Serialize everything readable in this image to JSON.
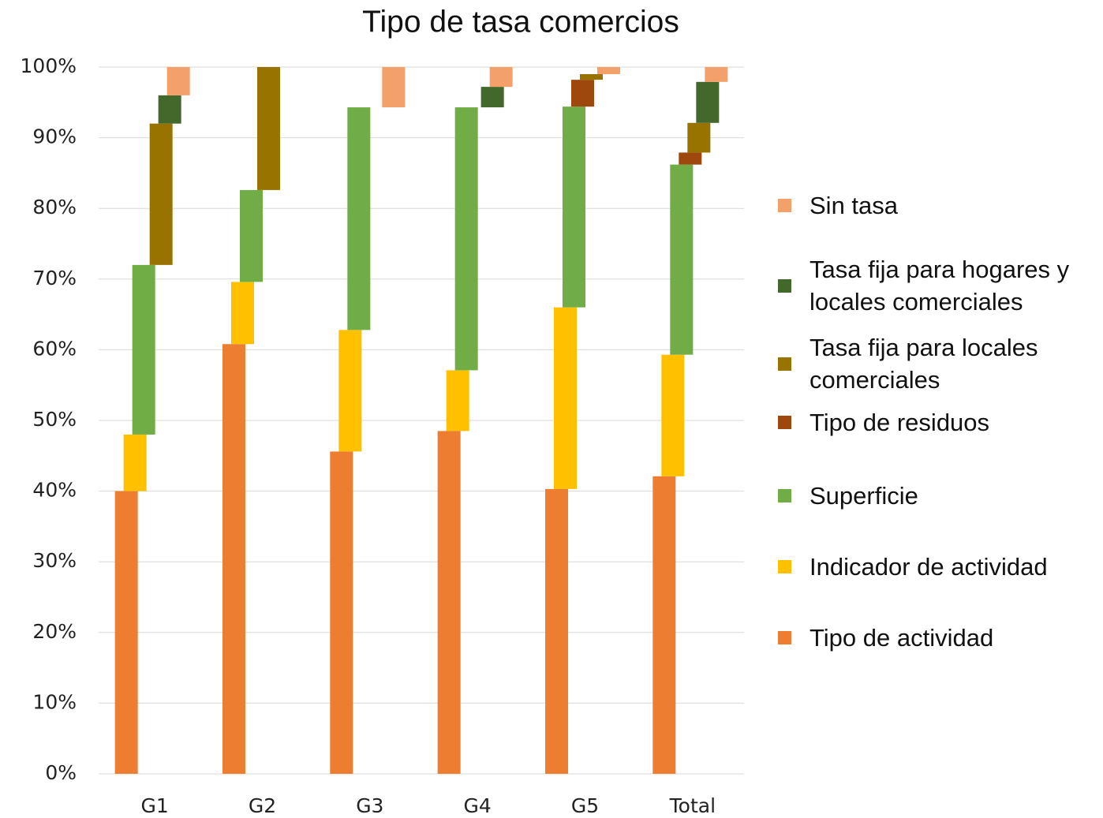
{
  "chart_data": {
    "type": "staggered-stacked-bar",
    "title": "Tipo de tasa comercios",
    "categories": [
      "G1",
      "G2",
      "G3",
      "G4",
      "G5",
      "Total"
    ],
    "series": [
      {
        "name": "Tipo de actividad",
        "color": "#ed7d31",
        "values": [
          40.0,
          60.8,
          45.6,
          48.5,
          40.3,
          42.1
        ]
      },
      {
        "name": "Indicador de actividad",
        "color": "#ffc000",
        "values": [
          8.0,
          8.8,
          17.2,
          8.6,
          25.7,
          17.2
        ]
      },
      {
        "name": "Superficie",
        "color": "#70ad47",
        "values": [
          24.0,
          13.0,
          31.5,
          37.2,
          28.4,
          26.9
        ]
      },
      {
        "name": "Tipo de residuos",
        "color": "#9e480e",
        "values": [
          0,
          0,
          0,
          0,
          3.8,
          1.7
        ]
      },
      {
        "name": "Tasa fija para locales comerciales",
        "color": "#997300",
        "values": [
          20.0,
          17.4,
          0,
          0,
          0.8,
          4.2
        ]
      },
      {
        "name": "Tasa fija para hogares y locales comerciales",
        "color": "#43682b",
        "values": [
          4.0,
          0,
          0,
          2.9,
          0,
          5.8
        ]
      },
      {
        "name": "Sin tasa",
        "color": "#f4a06a",
        "values": [
          4.0,
          0,
          5.7,
          2.8,
          1.0,
          2.1
        ]
      }
    ],
    "ylim": [
      0,
      100
    ],
    "yticks": [
      {
        "value": 0,
        "label": "0%"
      },
      {
        "value": 10,
        "label": "10%"
      },
      {
        "value": 20,
        "label": "20%"
      },
      {
        "value": 30,
        "label": "30%"
      },
      {
        "value": 40,
        "label": "40%"
      },
      {
        "value": 50,
        "label": "50%"
      },
      {
        "value": 60,
        "label": "60%"
      },
      {
        "value": 70,
        "label": "70%"
      },
      {
        "value": 80,
        "label": "80%"
      },
      {
        "value": 90,
        "label": "90%"
      },
      {
        "value": 100,
        "label": "100%"
      }
    ],
    "grid": true
  }
}
